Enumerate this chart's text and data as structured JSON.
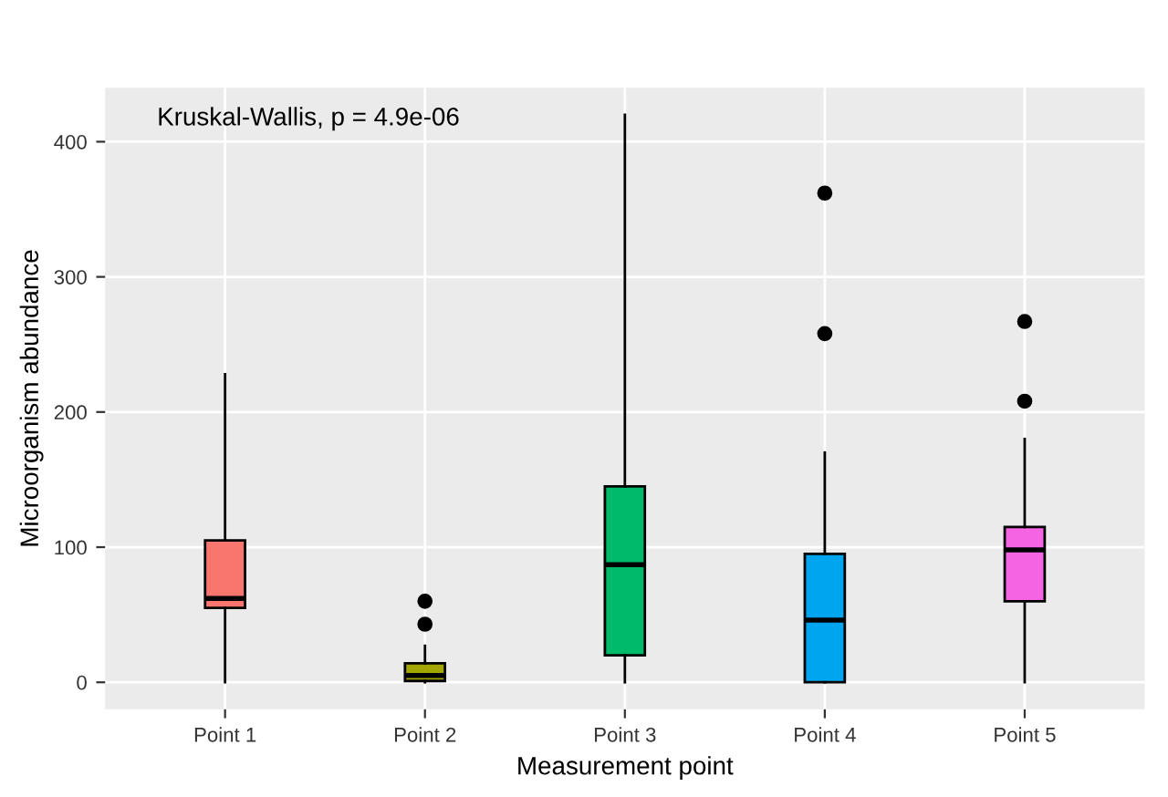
{
  "chart_data": {
    "type": "box",
    "xlabel": "Measurement point",
    "ylabel": "Microorganism abundance",
    "annotations": [
      "Kruskal-Wallis, p = 4.9e-06"
    ],
    "categories": [
      "Point 1",
      "Point 2",
      "Point 3",
      "Point 4",
      "Point 5"
    ],
    "colors": [
      "#f8766d",
      "#a3a500",
      "#00ba6b",
      "#00a5f0",
      "#f564e3"
    ],
    "boxes": [
      {
        "low": 0,
        "q1": 55,
        "median": 62,
        "q3": 105,
        "high": 228
      },
      {
        "low": 0,
        "q1": 1,
        "median": 5,
        "q3": 14,
        "high": 27,
        "outliers": [
          43,
          60
        ]
      },
      {
        "low": 0,
        "q1": 20,
        "median": 87,
        "q3": 145,
        "high": 420
      },
      {
        "low": 0,
        "q1": 0,
        "median": 46,
        "q3": 95,
        "high": 170,
        "outliers": [
          258,
          362
        ]
      },
      {
        "low": 0,
        "q1": 60,
        "median": 98,
        "q3": 115,
        "high": 180,
        "outliers": [
          208,
          267
        ]
      }
    ],
    "ylim": [
      -20,
      440
    ],
    "yticks": [
      0,
      100,
      200,
      300,
      400
    ],
    "grid": true
  }
}
